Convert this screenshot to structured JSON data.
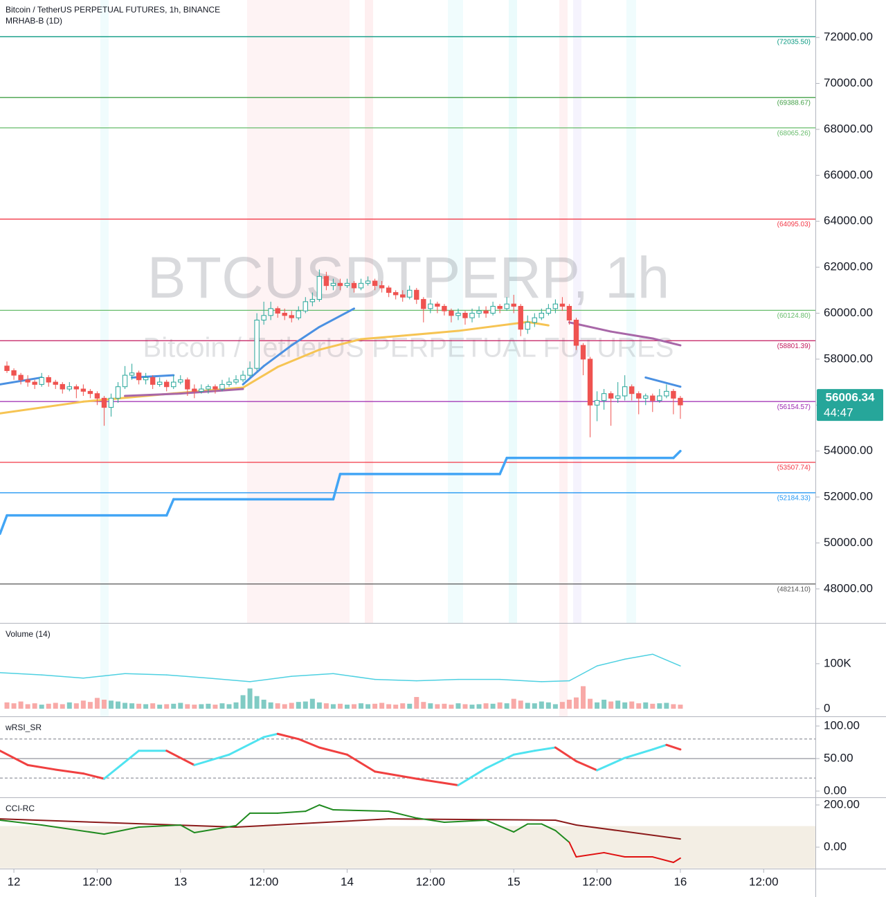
{
  "x_axis": {
    "xlim": [
      -2,
      115.45
    ],
    "xticks": [
      {
        "value": 0,
        "label": "12"
      },
      {
        "value": 12,
        "label": "12:00"
      },
      {
        "value": 24,
        "label": "13"
      },
      {
        "value": 36,
        "label": "12:00"
      },
      {
        "value": 48,
        "label": "14"
      },
      {
        "value": 60,
        "label": "12:00"
      },
      {
        "value": 72,
        "label": "15"
      },
      {
        "value": 84,
        "label": "12:00"
      },
      {
        "value": 96,
        "label": "16"
      },
      {
        "value": 108,
        "label": "12:00"
      }
    ]
  },
  "chart_data": [
    {
      "type": "candlestick",
      "title": "Bitcoin / TetherUS PERPETUAL FUTURES, 1h, BINANCE",
      "subtitle": "MRHAB-B (1D)",
      "watermark": [
        "BTCUSDTPERP, 1h",
        "Bitcoin / TetherUS PERPETUAL FUTURES"
      ],
      "up_color": "#26a69a",
      "down_color": "#ef5350",
      "ylim": [
        46520,
        73630
      ],
      "yticks": [
        {
          "value": 48000,
          "label": "48000.00"
        },
        {
          "value": 50000,
          "label": "50000.00"
        },
        {
          "value": 52000,
          "label": "52000.00"
        },
        {
          "value": 54000,
          "label": "54000.00"
        },
        {
          "value": 56000,
          "label": "56000.00"
        },
        {
          "value": 58000,
          "label": "58000.00"
        },
        {
          "value": 60000,
          "label": "60000.00"
        },
        {
          "value": 62000,
          "label": "62000.00"
        },
        {
          "value": 64000,
          "label": "64000.00"
        },
        {
          "value": 66000,
          "label": "66000.00"
        },
        {
          "value": 68000,
          "label": "68000.00"
        },
        {
          "value": 70000,
          "label": "70000.00"
        },
        {
          "value": 72000,
          "label": "72000.00"
        }
      ],
      "x": [
        -1,
        0,
        1,
        2,
        3,
        4,
        5,
        6,
        7,
        8,
        9,
        10,
        11,
        12,
        13,
        14,
        15,
        16,
        17,
        18,
        19,
        20,
        21,
        22,
        23,
        24,
        25,
        26,
        27,
        28,
        29,
        30,
        31,
        32,
        33,
        34,
        35,
        36,
        37,
        38,
        39,
        40,
        41,
        42,
        43,
        44,
        45,
        46,
        47,
        48,
        49,
        50,
        51,
        52,
        53,
        54,
        55,
        56,
        57,
        58,
        59,
        60,
        61,
        62,
        63,
        64,
        65,
        66,
        67,
        68,
        69,
        70,
        71,
        72,
        73,
        74,
        75,
        76,
        77,
        78,
        79,
        80,
        81,
        82,
        83,
        84,
        85,
        86,
        87,
        88,
        89,
        90,
        91,
        92,
        93,
        94,
        95,
        96
      ],
      "open": [
        57700,
        57500,
        57300,
        57100,
        57000,
        56900,
        57200,
        57000,
        56900,
        56700,
        56800,
        56700,
        56600,
        56500,
        56300,
        55900,
        56300,
        56800,
        57300,
        57400,
        57100,
        57200,
        56900,
        57000,
        56800,
        57000,
        57100,
        56700,
        56600,
        56700,
        56800,
        56700,
        56900,
        57000,
        57100,
        57300,
        57600,
        59700,
        59900,
        60200,
        60000,
        59900,
        59800,
        60100,
        60500,
        60600,
        61600,
        61200,
        61300,
        61200,
        61300,
        61100,
        61300,
        61400,
        61200,
        61100,
        60900,
        60800,
        60700,
        61000,
        60600,
        60200,
        60400,
        60300,
        60100,
        59900,
        60000,
        59800,
        60000,
        60100,
        60000,
        60300,
        60200,
        60400,
        60300,
        59300,
        59600,
        59800,
        60000,
        60200,
        60400,
        60300,
        59700,
        58600,
        58000,
        56000,
        56200,
        56500,
        56300,
        56400,
        56800,
        56500,
        56300,
        56400,
        56200,
        56400,
        56600,
        56300
      ],
      "high": [
        57900,
        57600,
        57400,
        57300,
        57100,
        57400,
        57300,
        57100,
        57000,
        57000,
        56900,
        56900,
        56700,
        56600,
        56400,
        56500,
        57000,
        57700,
        57800,
        57500,
        57400,
        57300,
        57200,
        57100,
        57300,
        57300,
        57200,
        56900,
        56900,
        56900,
        56900,
        57100,
        57200,
        57300,
        57500,
        57900,
        60000,
        60500,
        60500,
        60300,
        60200,
        60100,
        60300,
        60700,
        60900,
        61900,
        61800,
        61500,
        61500,
        61500,
        61400,
        61500,
        61600,
        61500,
        61400,
        61200,
        61000,
        61000,
        61200,
        61100,
        60700,
        60600,
        60500,
        60400,
        60200,
        60200,
        60100,
        60200,
        60300,
        60300,
        60500,
        60400,
        60700,
        60800,
        60400,
        59900,
        60000,
        60200,
        60400,
        60600,
        60700,
        60400,
        59800,
        58700,
        58100,
        56600,
        56700,
        56600,
        57000,
        57300,
        56900,
        56600,
        56500,
        56500,
        56700,
        56900,
        56700,
        56400
      ],
      "low": [
        57400,
        57100,
        56900,
        56800,
        56700,
        56800,
        56800,
        56700,
        56500,
        56600,
        56300,
        56400,
        56300,
        56000,
        55100,
        55500,
        56100,
        56700,
        57100,
        56900,
        56900,
        56700,
        56800,
        56600,
        56700,
        56900,
        56400,
        56300,
        56500,
        56500,
        56500,
        56600,
        56800,
        56900,
        57000,
        57200,
        57500,
        59500,
        59700,
        59800,
        59700,
        59600,
        59700,
        60000,
        60300,
        60500,
        61000,
        61000,
        61000,
        61100,
        60900,
        61000,
        61200,
        61000,
        60900,
        60700,
        60600,
        60500,
        60600,
        60400,
        59600,
        60000,
        60000,
        59900,
        59600,
        59700,
        59500,
        59600,
        59800,
        59800,
        59900,
        60000,
        60100,
        60000,
        59000,
        59100,
        59400,
        59700,
        59900,
        60000,
        60100,
        59500,
        58400,
        57300,
        54600,
        55300,
        55800,
        55100,
        56100,
        56200,
        56200,
        55600,
        56000,
        55700,
        56100,
        56300,
        55600,
        55400
      ],
      "close": [
        57500,
        57300,
        57100,
        57000,
        56900,
        57200,
        57000,
        56900,
        56700,
        56800,
        56700,
        56600,
        56500,
        56300,
        55900,
        56300,
        56800,
        57300,
        57400,
        57100,
        57200,
        56900,
        57000,
        56800,
        57000,
        57100,
        56700,
        56600,
        56700,
        56800,
        56700,
        56900,
        57000,
        57100,
        57300,
        57600,
        59700,
        59900,
        60200,
        60000,
        59900,
        59800,
        60100,
        60500,
        60600,
        61600,
        61200,
        61300,
        61200,
        61300,
        61100,
        61300,
        61400,
        61200,
        61100,
        60900,
        60800,
        60700,
        61000,
        60600,
        60200,
        60400,
        60300,
        60100,
        59900,
        60000,
        59800,
        60000,
        60100,
        60000,
        60300,
        60200,
        60400,
        60300,
        59300,
        59600,
        59800,
        60000,
        60200,
        60400,
        60300,
        59700,
        58600,
        58000,
        56000,
        56200,
        56500,
        56300,
        56400,
        56800,
        56500,
        56300,
        56400,
        56200,
        56400,
        56600,
        56300,
        56006.34
      ],
      "levels": [
        {
          "value": 72035.5,
          "label": "(72035.50)",
          "color": "#089981"
        },
        {
          "value": 69388.67,
          "label": "(69388.67)",
          "color": "#43a047"
        },
        {
          "value": 68065.26,
          "label": "(68065.26)",
          "color": "#66bb6a"
        },
        {
          "value": 64095.03,
          "label": "(64095.03)",
          "color": "#f23645"
        },
        {
          "value": 60124.8,
          "label": "(60124.80)",
          "color": "#66bb6a"
        },
        {
          "value": 58801.39,
          "label": "(58801.39)",
          "color": "#c2185b"
        },
        {
          "value": 56154.57,
          "label": "(56154.57)",
          "color": "#9c27b0"
        },
        {
          "value": 53507.74,
          "label": "(53507.74)",
          "color": "#f23645"
        },
        {
          "value": 52184.33,
          "label": "(52184.33)",
          "color": "#2196f3"
        },
        {
          "value": 48214.1,
          "label": "(48214.10)",
          "color": "#555555"
        }
      ],
      "lines": [
        {
          "color": "#42a5f5",
          "width": 3.5,
          "x": [
            -2,
            -1,
            22,
            23,
            46,
            47,
            70,
            71,
            95,
            96
          ],
          "values": [
            50400,
            51200,
            51200,
            51900,
            51900,
            53000,
            53000,
            53700,
            53700,
            54000
          ]
        },
        {
          "color": "#f6c453",
          "width": 3,
          "x": [
            -2,
            10,
            23,
            33,
            38,
            44,
            50,
            56,
            64,
            74,
            77
          ],
          "values": [
            55640,
            56150,
            56510,
            56760,
            57660,
            58410,
            58870,
            59020,
            59230,
            59620,
            59470
          ]
        },
        {
          "color": "#a867a8",
          "width": 3,
          "x": [
            16,
            24,
            33,
            34,
            80,
            86,
            92,
            96
          ],
          "values": [
            56400,
            56500,
            56700,
            null,
            59600,
            59200,
            58900,
            58600
          ]
        },
        {
          "color": "#4a90e2",
          "width": 3,
          "x": [
            -2,
            4,
            5,
            17,
            23,
            24,
            33,
            36,
            40,
            44,
            49,
            50,
            91,
            96
          ],
          "values": [
            56900,
            57200,
            null,
            57200,
            57300,
            null,
            56900,
            57700,
            58600,
            59400,
            60200,
            null,
            57200,
            56800
          ]
        }
      ],
      "last_price": 56006.34,
      "countdown": "44:47",
      "last_price_color": "#26a69a"
    },
    {
      "type": "bar",
      "title": "Volume (14)",
      "up_color": "#80cbc4",
      "down_color": "#f8a9a7",
      "ylim": [
        -17000,
        189000
      ],
      "yticks": [
        0,
        {
          "value": 100000,
          "label": "100K"
        }
      ],
      "values": [
        14000,
        12000,
        16000,
        10000,
        12000,
        9000,
        11000,
        13000,
        10000,
        14000,
        12000,
        18000,
        15000,
        24000,
        20000,
        18000,
        16000,
        13000,
        12000,
        11000,
        10000,
        12000,
        9000,
        10000,
        11000,
        13000,
        10000,
        9000,
        10000,
        11000,
        9000,
        12000,
        10000,
        14000,
        30000,
        45000,
        28000,
        20000,
        14000,
        12000,
        10000,
        13000,
        15000,
        16000,
        22000,
        14000,
        12000,
        10000,
        11000,
        9000,
        10000,
        12000,
        10000,
        11000,
        13000,
        10000,
        9000,
        12000,
        11000,
        26000,
        15000,
        12000,
        10000,
        11000,
        9000,
        12000,
        10000,
        9000,
        10000,
        12000,
        11000,
        14000,
        12000,
        22000,
        18000,
        13000,
        12000,
        16000,
        14000,
        10000,
        15000,
        20000,
        25000,
        50000,
        22000,
        14000,
        20000,
        16000,
        18000,
        14000,
        16000,
        12000,
        14000,
        11000,
        12000,
        13000,
        10000,
        9000
      ],
      "line": {
        "color": "#4dd0e1",
        "x": [
          -2,
          4,
          10,
          16,
          22,
          28,
          34,
          40,
          46,
          52,
          58,
          64,
          70,
          76,
          80,
          84,
          88,
          92,
          96
        ],
        "values": [
          80000,
          75000,
          68000,
          78000,
          75000,
          68000,
          60000,
          72000,
          78000,
          65000,
          62000,
          65000,
          65000,
          60000,
          62000,
          95000,
          110000,
          121000,
          95000
        ]
      }
    },
    {
      "type": "line",
      "title": "wRSI_SR",
      "ylim": [
        -9.6,
        113.8
      ],
      "yticks": [
        {
          "value": 0,
          "label": "0.00"
        },
        {
          "value": 50,
          "label": "50.00"
        },
        {
          "value": 100,
          "label": "100.00"
        }
      ],
      "hlines": [
        {
          "value": 80,
          "style": "dashed"
        },
        {
          "value": 50,
          "style": "solid"
        },
        {
          "value": 20,
          "style": "dashed"
        }
      ],
      "series": [
        {
          "color": "#4fe3f0",
          "falling_color": "#f04040",
          "width": 3,
          "x": [
            -2,
            2,
            6,
            10,
            13,
            18,
            22,
            26,
            31,
            36,
            38,
            41,
            44,
            48,
            52,
            58,
            64,
            68,
            72,
            75,
            78,
            81,
            84,
            88,
            92,
            94,
            96
          ],
          "values": [
            62,
            40,
            33,
            27,
            19,
            62,
            62,
            40,
            56,
            83,
            88,
            80,
            67,
            56,
            30,
            19,
            9,
            35,
            56,
            62,
            67,
            46,
            32,
            51,
            64,
            71,
            64
          ]
        }
      ]
    },
    {
      "type": "line",
      "title": "CCI-RC",
      "ylim": [
        -101.6,
        232.8
      ],
      "yticks": [
        {
          "value": 0,
          "label": "0.00"
        },
        {
          "value": 200,
          "label": "200.00"
        }
      ],
      "band": [
        -100,
        100
      ],
      "band_color": "#f3eee4",
      "series": [
        {
          "color": "#8b1a1a",
          "width": 2,
          "x": [
            -2,
            32,
            54,
            78,
            81,
            96
          ],
          "values": [
            134,
            95,
            134,
            128,
            105,
            39
          ]
        },
        {
          "color": "#1f8a1f",
          "negative_color": "#e01010",
          "width": 2,
          "x": [
            -2,
            4,
            13,
            18,
            24,
            26,
            32,
            34,
            38,
            42,
            44,
            46,
            54,
            58,
            62,
            68,
            72,
            74,
            76,
            78,
            80,
            81,
            85,
            88,
            92,
            95,
            96
          ],
          "values": [
            128,
            105,
            62,
            95,
            105,
            69,
            102,
            161,
            161,
            170,
            200,
            177,
            170,
            138,
            118,
            128,
            72,
            110,
            110,
            79,
            23,
            -46,
            -26,
            -46,
            -46,
            -72,
            -52
          ]
        }
      ]
    }
  ]
}
